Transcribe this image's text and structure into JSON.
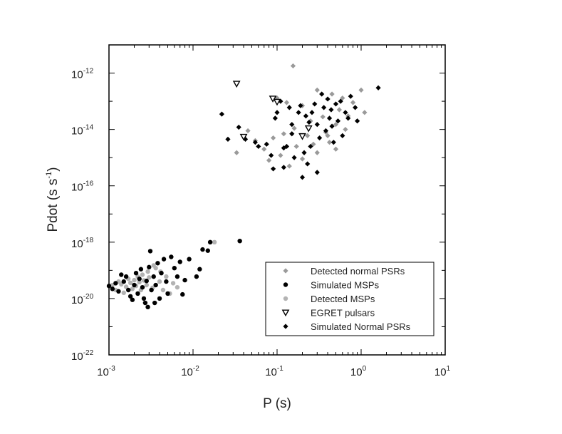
{
  "chart_data": {
    "type": "scatter",
    "xlabel": "P (s)",
    "ylabel_main": "Pdot (s s",
    "ylabel_exp": "-1",
    "ylabel_close": ")",
    "x_scale": "log",
    "y_scale": "log",
    "xlim_exp": [
      -3,
      1
    ],
    "ylim_exp": [
      -22,
      -11
    ],
    "x_ticks": [
      {
        "base": "10",
        "exp": "-3"
      },
      {
        "base": "10",
        "exp": "-2"
      },
      {
        "base": "10",
        "exp": "-1"
      },
      {
        "base": "10",
        "exp": "0"
      },
      {
        "base": "10",
        "exp": "1"
      }
    ],
    "y_ticks": [
      {
        "base": "10",
        "exp": "-22",
        "value": -22
      },
      {
        "base": "10",
        "exp": "-20",
        "value": -20
      },
      {
        "base": "10",
        "exp": "-18",
        "value": -18
      },
      {
        "base": "10",
        "exp": "-16",
        "value": -16
      },
      {
        "base": "10",
        "exp": "-14",
        "value": -14
      },
      {
        "base": "10",
        "exp": "-12",
        "value": -12
      }
    ],
    "legend_position": "bottom-right",
    "grid": false,
    "series": [
      {
        "name": "Detected normal PSRs",
        "marker": "diamond",
        "color": "#9a9a9a",
        "points": [
          [
            0.155,
            1.8e-12
          ],
          [
            0.1,
            1.3e-13
          ],
          [
            0.13,
            9e-14
          ],
          [
            0.2,
            7e-14
          ],
          [
            0.3,
            2.5e-13
          ],
          [
            0.45,
            1.8e-13
          ],
          [
            0.6,
            1.3e-13
          ],
          [
            0.8,
            9e-14
          ],
          [
            1.1,
            4e-14
          ],
          [
            0.07,
            2e-15
          ],
          [
            0.09,
            5e-15
          ],
          [
            0.12,
            7e-15
          ],
          [
            0.16,
            1.1e-14
          ],
          [
            0.25,
            2e-14
          ],
          [
            0.35,
            2.8e-14
          ],
          [
            0.5,
            1.5e-14
          ],
          [
            0.65,
            1e-14
          ],
          [
            0.045,
            9e-15
          ],
          [
            0.033,
            1.5e-15
          ],
          [
            0.055,
            4e-15
          ],
          [
            0.08,
            8e-16
          ],
          [
            0.11,
            1.2e-15
          ],
          [
            0.14,
            5e-16
          ],
          [
            0.2,
            9e-16
          ],
          [
            0.27,
            3e-15
          ],
          [
            0.4,
            6e-15
          ],
          [
            0.55,
            5e-14
          ],
          [
            0.7,
            3e-14
          ],
          [
            1.0,
            2.5e-13
          ],
          [
            0.38,
            8e-15
          ],
          [
            0.42,
            3.5e-15
          ],
          [
            0.23,
            6e-15
          ],
          [
            0.3,
            1.5e-15
          ],
          [
            0.17,
            2.5e-15
          ],
          [
            0.5,
            2e-15
          ]
        ]
      },
      {
        "name": "Simulated MSPs",
        "marker": "circle",
        "color": "#000000",
        "points": [
          [
            0.001,
            2.8e-20
          ],
          [
            0.0012,
            3.5e-20
          ],
          [
            0.0013,
            1.8e-20
          ],
          [
            0.0015,
            4e-20
          ],
          [
            0.0016,
            6e-20
          ],
          [
            0.0017,
            2e-20
          ],
          [
            0.0018,
            1.2e-20
          ],
          [
            0.002,
            3e-20
          ],
          [
            0.0021,
            8e-20
          ],
          [
            0.0022,
            1.5e-20
          ],
          [
            0.0023,
            5e-20
          ],
          [
            0.0025,
            2.5e-20
          ],
          [
            0.0026,
            1e-20
          ],
          [
            0.0027,
            7e-21
          ],
          [
            0.0028,
            4.2e-20
          ],
          [
            0.003,
            1.3e-19
          ],
          [
            0.0032,
            2e-20
          ],
          [
            0.0034,
            6e-20
          ],
          [
            0.0036,
            3e-20
          ],
          [
            0.0038,
            1.8e-19
          ],
          [
            0.004,
            1e-20
          ],
          [
            0.0042,
            8e-20
          ],
          [
            0.0045,
            2.5e-19
          ],
          [
            0.0048,
            4e-20
          ],
          [
            0.005,
            1.5e-20
          ],
          [
            0.0055,
            3e-19
          ],
          [
            0.006,
            1.2e-19
          ],
          [
            0.0065,
            6e-20
          ],
          [
            0.007,
            2e-19
          ],
          [
            0.0075,
            1.4e-20
          ],
          [
            0.008,
            4.5e-20
          ],
          [
            0.009,
            2.5e-19
          ],
          [
            0.011,
            6e-20
          ],
          [
            0.012,
            1.1e-19
          ],
          [
            0.013,
            5.5e-19
          ],
          [
            0.015,
            5e-19
          ],
          [
            0.016,
            1e-18
          ],
          [
            0.0035,
            7e-21
          ],
          [
            0.0029,
            5e-21
          ],
          [
            0.0019,
            9e-21
          ],
          [
            0.0024,
            1.1e-19
          ],
          [
            0.0014,
            7e-20
          ],
          [
            0.0011,
            2.2e-20
          ],
          [
            0.036,
            1.1e-18
          ],
          [
            0.0031,
            4.8e-19
          ]
        ]
      },
      {
        "name": "Detected MSPs",
        "marker": "circle",
        "color": "#b3b3b3",
        "points": [
          [
            0.0011,
            3e-20
          ],
          [
            0.0012,
            2e-20
          ],
          [
            0.0013,
            4e-20
          ],
          [
            0.0014,
            3.2e-20
          ],
          [
            0.0015,
            1.6e-20
          ],
          [
            0.0016,
            2.6e-20
          ],
          [
            0.0017,
            5e-20
          ],
          [
            0.0018,
            3.6e-20
          ],
          [
            0.0019,
            2.2e-20
          ],
          [
            0.002,
            4.5e-20
          ],
          [
            0.0021,
            2.8e-20
          ],
          [
            0.0022,
            6e-20
          ],
          [
            0.0023,
            3.8e-20
          ],
          [
            0.0024,
            2e-20
          ],
          [
            0.0025,
            7e-20
          ],
          [
            0.0026,
            4.4e-20
          ],
          [
            0.0028,
            3e-20
          ],
          [
            0.003,
            5.6e-20
          ],
          [
            0.0033,
            2.4e-20
          ],
          [
            0.0036,
            1.2e-19
          ],
          [
            0.004,
            4e-20
          ],
          [
            0.0044,
            2e-20
          ],
          [
            0.0048,
            6e-20
          ],
          [
            0.0053,
            1.5e-20
          ],
          [
            0.0058,
            3.5e-20
          ],
          [
            0.0065,
            2.5e-20
          ],
          [
            0.0029,
            9e-20
          ],
          [
            0.0034,
            1.5e-19
          ],
          [
            0.0041,
            9e-20
          ],
          [
            0.018,
            1e-18
          ]
        ]
      },
      {
        "name": "EGRET pulsars",
        "marker": "triangle-down",
        "color": "#000000",
        "points": [
          [
            0.033,
            4.2e-13
          ],
          [
            0.089,
            1.25e-13
          ],
          [
            0.1,
            9.6e-14
          ],
          [
            0.04,
            5.5e-15
          ],
          [
            0.237,
            1.1e-14
          ],
          [
            0.2,
            5.8e-15
          ]
        ]
      },
      {
        "name": "Simulated Normal PSRs",
        "marker": "diamond",
        "color": "#000000",
        "points": [
          [
            0.022,
            3.5e-14
          ],
          [
            0.026,
            4.5e-15
          ],
          [
            0.035,
            1.2e-14
          ],
          [
            0.042,
            4.5e-15
          ],
          [
            0.055,
            3.5e-15
          ],
          [
            0.06,
            2.5e-15
          ],
          [
            0.075,
            3e-15
          ],
          [
            0.085,
            1.2e-15
          ],
          [
            0.09,
            4e-16
          ],
          [
            0.095,
            2.5e-14
          ],
          [
            0.1,
            4e-14
          ],
          [
            0.11,
            1e-13
          ],
          [
            0.12,
            2.2e-15
          ],
          [
            0.13,
            2.5e-15
          ],
          [
            0.14,
            6e-14
          ],
          [
            0.15,
            1.5e-14
          ],
          [
            0.16,
            1e-15
          ],
          [
            0.18,
            4e-14
          ],
          [
            0.19,
            7e-14
          ],
          [
            0.21,
            1.5e-15
          ],
          [
            0.22,
            3e-14
          ],
          [
            0.23,
            6e-16
          ],
          [
            0.25,
            2.5e-15
          ],
          [
            0.26,
            4e-14
          ],
          [
            0.28,
            8e-14
          ],
          [
            0.3,
            1.5e-14
          ],
          [
            0.32,
            5e-15
          ],
          [
            0.34,
            1.8e-13
          ],
          [
            0.36,
            6e-14
          ],
          [
            0.38,
            9e-15
          ],
          [
            0.4,
            1.2e-13
          ],
          [
            0.42,
            2.5e-14
          ],
          [
            0.44,
            5e-14
          ],
          [
            0.47,
            3.5e-15
          ],
          [
            0.5,
            8e-14
          ],
          [
            0.53,
            2e-14
          ],
          [
            0.57,
            1e-13
          ],
          [
            0.6,
            6e-15
          ],
          [
            0.65,
            4e-14
          ],
          [
            0.7,
            2.5e-14
          ],
          [
            0.75,
            1.5e-13
          ],
          [
            0.85,
            6e-14
          ],
          [
            0.9,
            2e-14
          ],
          [
            1.6,
            3e-13
          ],
          [
            0.12,
            4.5e-16
          ],
          [
            0.2,
            2e-16
          ],
          [
            0.15,
            7e-15
          ],
          [
            0.3,
            3e-16
          ],
          [
            0.24,
            1.8e-14
          ],
          [
            0.45,
            1.3e-14
          ]
        ]
      }
    ]
  }
}
